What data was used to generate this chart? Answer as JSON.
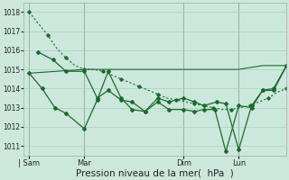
{
  "background_color": "#cce8dd",
  "grid_color": "#aacfbf",
  "line_color": "#1a6b2a",
  "ylim": [
    1010.5,
    1018.5
  ],
  "yticks": [
    1011,
    1012,
    1013,
    1014,
    1015,
    1016,
    1017,
    1018
  ],
  "xlabel": "Pression niveau de la mer(  hPa  )",
  "xlabel_fontsize": 7.5,
  "xtick_labels": [
    "| Sam",
    "Mar",
    "Dim",
    "Lun"
  ],
  "xtick_positions": [
    0,
    30,
    84,
    114
  ],
  "xlim": [
    -3,
    140
  ],
  "figsize": [
    3.2,
    2.0
  ],
  "dpi": 100,
  "vlines_x": [
    0,
    30,
    84,
    114
  ],
  "smooth_line": {
    "x": [
      0,
      5,
      10,
      15,
      20,
      25,
      30,
      35,
      40,
      45,
      50,
      55,
      60,
      65,
      70,
      75,
      80,
      85,
      90,
      95,
      100,
      105,
      110,
      115,
      120,
      125,
      130,
      135,
      140
    ],
    "y": [
      1018.0,
      1017.4,
      1016.8,
      1016.1,
      1015.6,
      1015.2,
      1015.0,
      1015.0,
      1014.9,
      1014.7,
      1014.5,
      1014.3,
      1014.1,
      1013.9,
      1013.7,
      1013.5,
      1013.4,
      1013.3,
      1013.2,
      1013.1,
      1013.0,
      1012.9,
      1012.9,
      1013.0,
      1013.1,
      1013.3,
      1013.5,
      1013.8,
      1014.0
    ]
  },
  "flat_line": {
    "x": [
      0,
      30,
      84,
      114,
      127,
      140
    ],
    "y": [
      1014.8,
      1015.0,
      1015.0,
      1015.0,
      1015.2,
      1015.2
    ]
  },
  "zigzag_line1": {
    "x": [
      5,
      13,
      20,
      30,
      37,
      43,
      50,
      56,
      63,
      70,
      76,
      84,
      90,
      95,
      102,
      107,
      114,
      121,
      127,
      133,
      140
    ],
    "y": [
      1015.9,
      1015.5,
      1014.9,
      1014.9,
      1013.5,
      1013.9,
      1013.4,
      1013.3,
      1012.8,
      1013.5,
      1013.3,
      1013.5,
      1013.3,
      1013.1,
      1013.3,
      1013.2,
      1010.8,
      1013.1,
      1013.9,
      1014.0,
      1015.2
    ]
  },
  "zigzag_line2": {
    "x": [
      0,
      7,
      14,
      20,
      30,
      37,
      43,
      50,
      56,
      63,
      70,
      76,
      84,
      90,
      95,
      101,
      107,
      114,
      121,
      127,
      133,
      140
    ],
    "y": [
      1014.8,
      1014.0,
      1013.0,
      1012.7,
      1011.9,
      1013.4,
      1014.9,
      1013.5,
      1012.9,
      1012.8,
      1013.3,
      1012.9,
      1012.9,
      1012.8,
      1012.9,
      1012.9,
      1010.7,
      1013.1,
      1013.0,
      1013.9,
      1013.9,
      1015.2
    ]
  }
}
